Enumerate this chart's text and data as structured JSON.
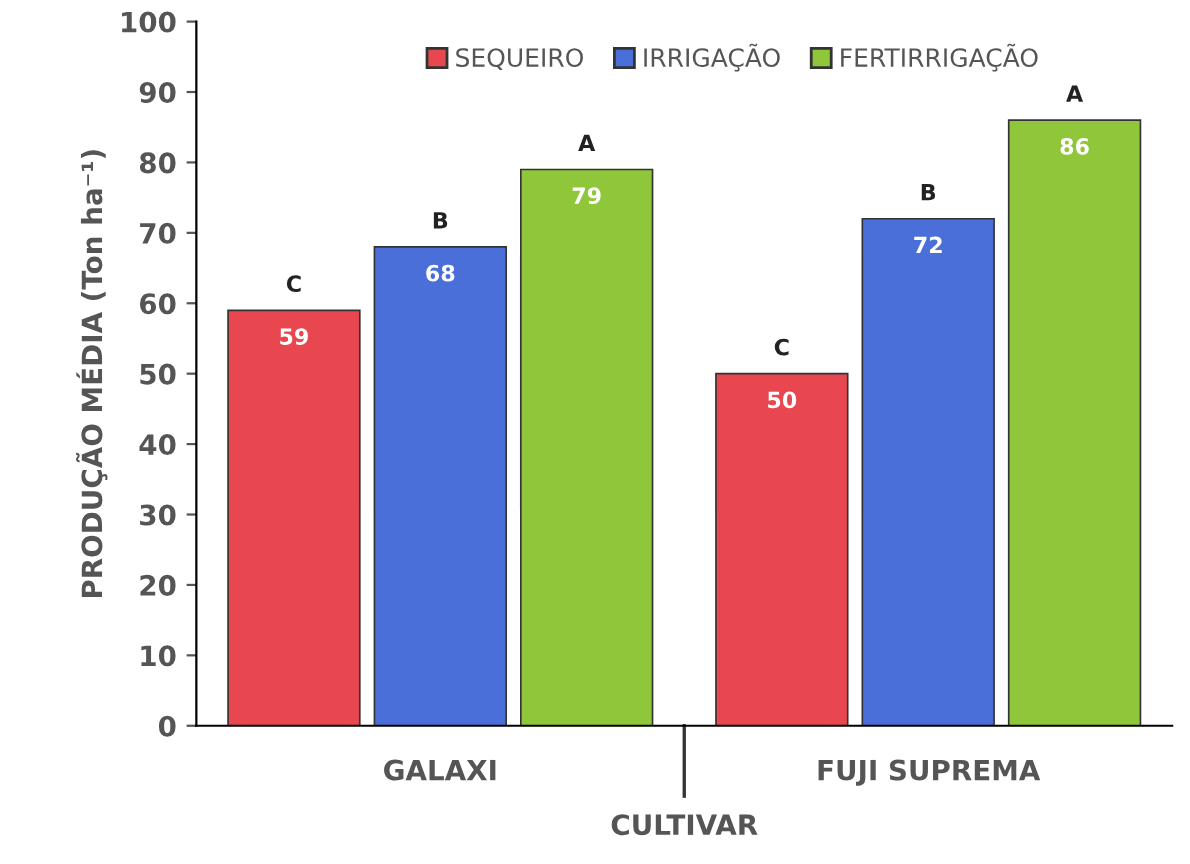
{
  "chart_data": {
    "type": "bar",
    "xlabel": "CULTIVAR",
    "ylabel": "PRODUÇÃO MÉDIA (Ton ha⁻¹)",
    "categories": [
      "GALAXI",
      "FUJI SUPREMA"
    ],
    "series": [
      {
        "name": "SEQUEIRO",
        "color": "#e8474f",
        "values": [
          59,
          50
        ]
      },
      {
        "name": "IRRIGAÇÃO",
        "color": "#4a6fd8",
        "values": [
          68,
          72
        ]
      },
      {
        "name": "FERTIRRIGAÇÃO",
        "color": "#8fc63a",
        "values": [
          79,
          86
        ]
      }
    ],
    "ylim": [
      0,
      100
    ],
    "yticks": [
      0,
      10,
      20,
      30,
      40,
      50,
      60,
      70,
      80,
      90,
      100
    ],
    "data_labels": true,
    "legend": "top",
    "grid": false,
    "annotations": [
      "C",
      "B",
      "A",
      "C",
      "B",
      "A"
    ]
  }
}
